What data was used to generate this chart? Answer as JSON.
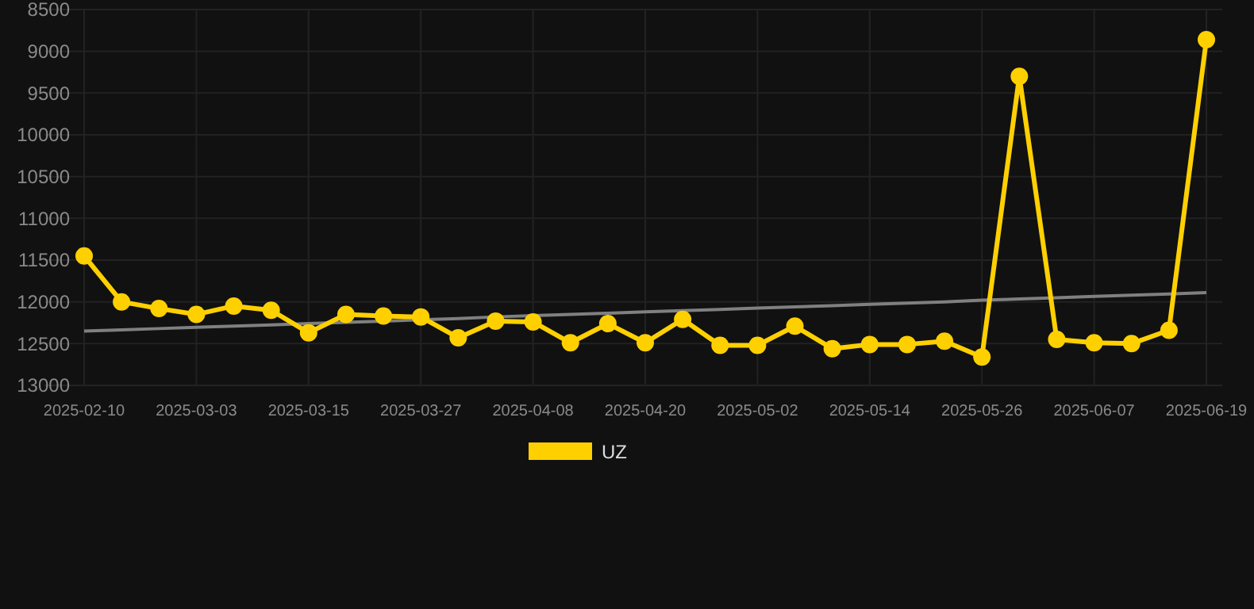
{
  "chart_data": {
    "type": "line",
    "categories": [
      "2025-02-10",
      null,
      null,
      "2025-03-03",
      null,
      null,
      "2025-03-15",
      null,
      null,
      "2025-03-27",
      null,
      null,
      "2025-04-08",
      null,
      null,
      "2025-04-20",
      null,
      null,
      "2025-05-02",
      null,
      null,
      "2025-05-14",
      null,
      null,
      "2025-05-26",
      null,
      null,
      "2025-06-07",
      null,
      null,
      "2025-06-19"
    ],
    "series": [
      {
        "name": "UZ",
        "color": "#ffd000",
        "marker": "circle",
        "values": [
          11450,
          12000,
          12080,
          12150,
          12050,
          12100,
          12370,
          12150,
          12170,
          12180,
          12430,
          12230,
          12240,
          12490,
          12260,
          12490,
          12210,
          12520,
          12520,
          12290,
          12560,
          12510,
          12510,
          12470,
          12660,
          9300,
          12450,
          12490,
          12500,
          12340,
          8860
        ]
      },
      {
        "type": "line",
        "color": "#808080",
        "marker": "none",
        "values": [
          12350,
          12335,
          12320,
          12305,
          12290,
          12275,
          12260,
          12245,
          12230,
          12215,
          12200,
          12180,
          12165,
          12150,
          12135,
          12120,
          12105,
          12090,
          12075,
          12060,
          12045,
          12030,
          12015,
          12000,
          11980,
          11965,
          11950,
          11935,
          11920,
          11905,
          11890
        ]
      }
    ],
    "ylim": [
      13000,
      8500
    ],
    "yticks": [
      8500,
      9000,
      9500,
      10000,
      10500,
      11000,
      11500,
      12000,
      12500,
      13000
    ],
    "grid": true,
    "legend": "bottom"
  }
}
